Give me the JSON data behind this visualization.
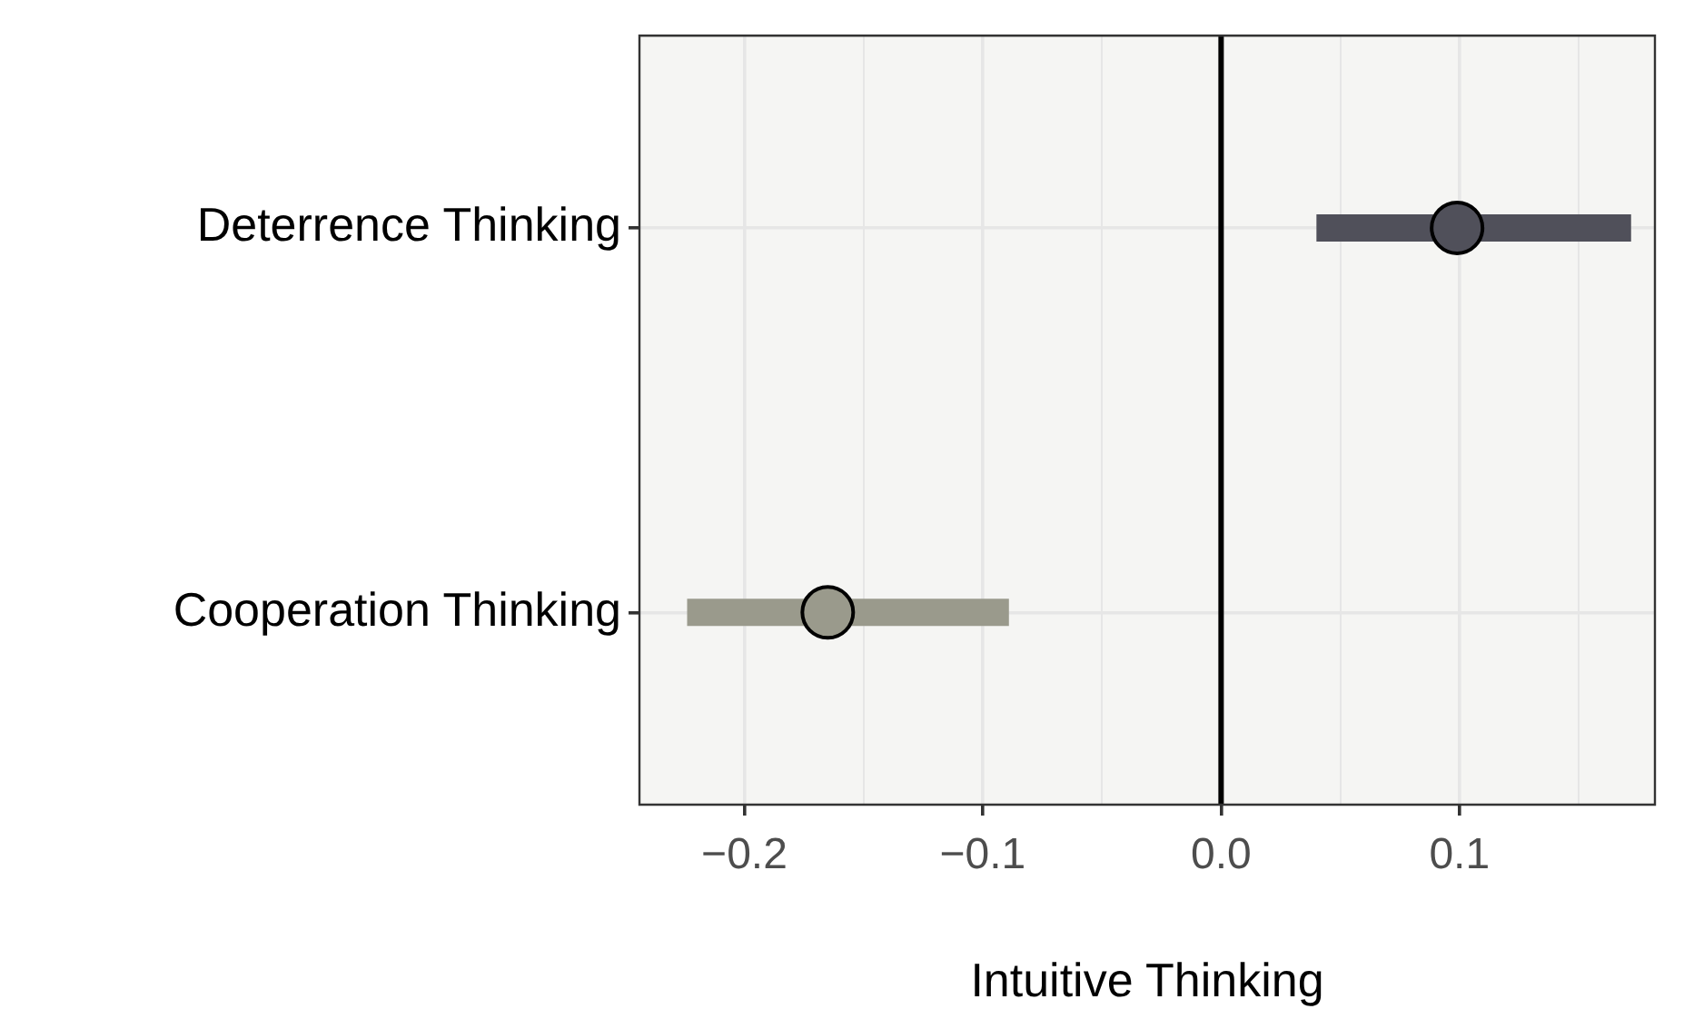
{
  "chart_data": {
    "type": "scatter",
    "orientation": "horizontal",
    "xlabel": "Intuitive Thinking",
    "categories": [
      "Deterrence Thinking",
      "Cooperation Thinking"
    ],
    "values": [
      0.099,
      -0.165
    ],
    "errors": [
      [
        0.04,
        0.172
      ],
      [
        -0.224,
        -0.089
      ]
    ],
    "colors": [
      "#50505a",
      "#9a9a8c"
    ],
    "xlim": [
      -0.244,
      0.182
    ],
    "xticks": [
      -0.2,
      {
        "value": -0.15,
        "label": null
      },
      -0.1,
      {
        "value": -0.05,
        "label": null
      },
      {
        "value": 0,
        "label": "0.0"
      },
      {
        "value": 0.05,
        "label": null
      },
      0.1,
      {
        "value": 0.15,
        "label": null
      }
    ],
    "grid": true,
    "marker": "circle",
    "ref_lines": [
      {
        "axis": "x",
        "value": 0,
        "color": "#000000"
      }
    ]
  }
}
